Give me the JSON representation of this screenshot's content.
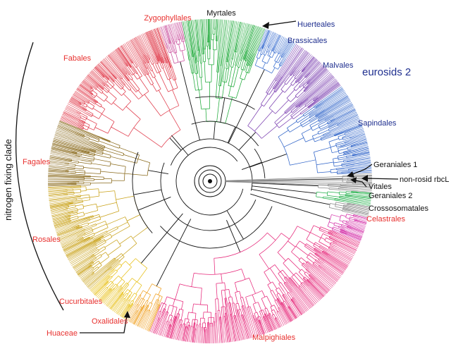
{
  "colors": {
    "red": "#e8312f",
    "blue": "#1f2f8f",
    "black": "#111111",
    "clade_colors": {
      "malvales": "#7b3fb0",
      "sapindales": "#2e63c8",
      "brassicales": "#3b6fd0",
      "myrtales": "#1faa3a",
      "zygophyllales": "#c84a9a",
      "fabales": "#e03a4a",
      "fagales": "#8a6a1c",
      "rosales": "#c9a21a",
      "cucurbitales": "#e8c018",
      "oxalidales": "#f0a020",
      "malpighiales": "#e6287a",
      "celastrales": "#d430a8",
      "geraniales": "#22b04a",
      "gray": "#888888"
    }
  },
  "labels": {
    "myrtales": "Myrtales",
    "zygophyllales": "Zygophyllales",
    "huerteales": "Huerteales",
    "brassicales": "Brassicales",
    "malvales": "Malvales",
    "eurosids2": "eurosids 2",
    "sapindales": "Sapindales",
    "fabales": "Fabales",
    "fagales": "Fagales",
    "rosales": "Rosales",
    "cucurbitales": "Cucurbitales",
    "oxalidales": "Oxalidales",
    "huaceae": "Huaceae",
    "malpighiales": "Malpighiales",
    "celastrales": "Celastrales",
    "geraniales1": "Geraniales 1",
    "nonrosid": "non-rosid rbcL",
    "vitales": "Vitales",
    "geraniales2": "Geraniales 2",
    "crossosomatales": "Crossosomatales",
    "nitrogen": "nitrogen fixing clade"
  }
}
